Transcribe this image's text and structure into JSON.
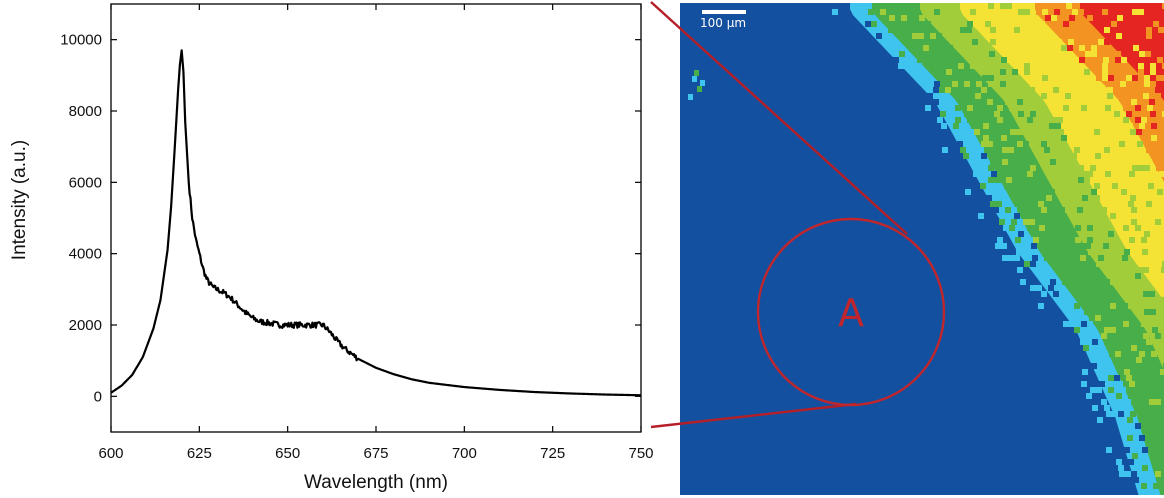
{
  "chart_data": {
    "type": "line",
    "title": "",
    "xlabel": "Wavelength (nm)",
    "ylabel": "Intensity (a.u.)",
    "xlim": [
      600,
      750
    ],
    "ylim": [
      -1000,
      11000
    ],
    "x_ticks": [
      600,
      625,
      650,
      675,
      700,
      725,
      750
    ],
    "y_ticks": [
      0,
      2000,
      4000,
      6000,
      8000,
      10000
    ],
    "grid": false,
    "legend": "none",
    "series": [
      {
        "color": "#000000",
        "x": [
          600,
          603,
          606,
          609,
          612,
          614,
          616,
          617,
          618,
          619,
          619.5,
          620,
          620.5,
          621,
          622,
          623,
          624,
          625,
          626,
          627,
          628,
          629,
          630,
          632,
          634,
          636,
          638,
          640,
          642,
          645,
          648,
          650,
          652,
          655,
          658,
          660,
          662,
          664,
          666,
          668,
          670,
          675,
          680,
          685,
          690,
          695,
          700,
          710,
          720,
          730,
          740,
          750
        ],
        "y": [
          100,
          300,
          600,
          1100,
          1900,
          2700,
          4100,
          5300,
          6900,
          8600,
          9300,
          9700,
          9100,
          7700,
          6000,
          5000,
          4400,
          4000,
          3600,
          3300,
          3150,
          3050,
          3000,
          2900,
          2750,
          2550,
          2350,
          2200,
          2100,
          2050,
          2000,
          2000,
          2000,
          2000,
          2000,
          2000,
          1800,
          1550,
          1350,
          1200,
          1050,
          800,
          620,
          480,
          380,
          320,
          260,
          180,
          120,
          80,
          50,
          30
        ]
      }
    ]
  },
  "map_image": {
    "scale_bar_label": "100 µm",
    "region_label": "A",
    "palette": [
      "#1450a0",
      "#3ec4ee",
      "#48ae4a",
      "#a2cd3a",
      "#f4e234",
      "#f39322",
      "#e52521"
    ],
    "callout_color": "#b51f28"
  }
}
